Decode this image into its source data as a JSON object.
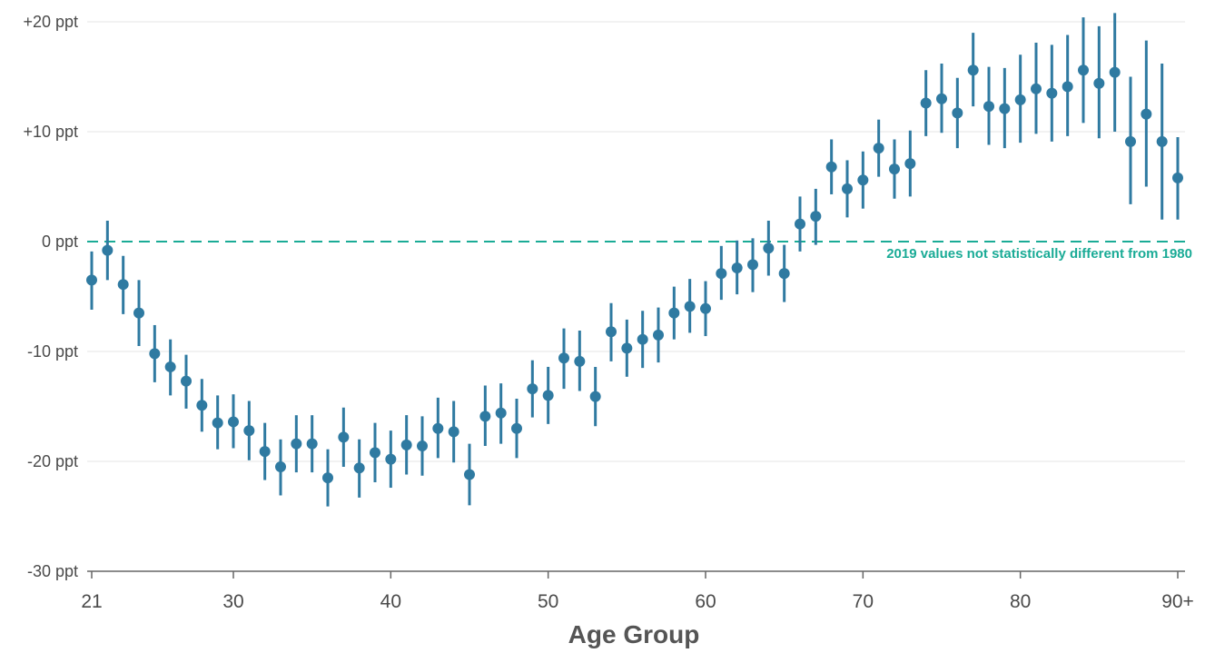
{
  "colors": {
    "series": "#2f7aa1",
    "reference": "#1aab96",
    "grid": "#e6e6e6",
    "axis": "#666666",
    "text": "#4a4a4a"
  },
  "chart_data": {
    "type": "scatter",
    "title": "",
    "xlabel": "Age Group",
    "ylabel": "",
    "xlim": [
      21,
      90
    ],
    "ylim": [
      -30,
      20
    ],
    "yticks": [
      {
        "value": 20,
        "label": "+20 ppt"
      },
      {
        "value": 10,
        "label": "+10 ppt"
      },
      {
        "value": 0,
        "label": "0 ppt"
      },
      {
        "value": -10,
        "label": "-10 ppt"
      },
      {
        "value": -20,
        "label": "-20 ppt"
      },
      {
        "value": -30,
        "label": "-30 ppt"
      }
    ],
    "xticks": [
      {
        "value": 21,
        "label": "21"
      },
      {
        "value": 30,
        "label": "30"
      },
      {
        "value": 40,
        "label": "40"
      },
      {
        "value": 50,
        "label": "50"
      },
      {
        "value": 60,
        "label": "60"
      },
      {
        "value": 70,
        "label": "70"
      },
      {
        "value": 80,
        "label": "80"
      },
      {
        "value": 90,
        "label": "90+"
      }
    ],
    "grid": true,
    "reference_line": {
      "value": 0,
      "style": "dashed"
    },
    "annotation": "2019 values not statistically different from 1980",
    "series": [
      {
        "points": [
          {
            "x": 21,
            "y": -3.5,
            "lo": -6.2,
            "hi": -0.9
          },
          {
            "x": 22,
            "y": -0.8,
            "lo": -3.5,
            "hi": 1.9
          },
          {
            "x": 23,
            "y": -3.9,
            "lo": -6.6,
            "hi": -1.3
          },
          {
            "x": 24,
            "y": -6.5,
            "lo": -9.5,
            "hi": -3.5
          },
          {
            "x": 25,
            "y": -10.2,
            "lo": -12.8,
            "hi": -7.6
          },
          {
            "x": 26,
            "y": -11.4,
            "lo": -14.0,
            "hi": -8.9
          },
          {
            "x": 27,
            "y": -12.7,
            "lo": -15.2,
            "hi": -10.3
          },
          {
            "x": 28,
            "y": -14.9,
            "lo": -17.3,
            "hi": -12.5
          },
          {
            "x": 29,
            "y": -16.5,
            "lo": -18.9,
            "hi": -14.0
          },
          {
            "x": 30,
            "y": -16.4,
            "lo": -18.8,
            "hi": -13.9
          },
          {
            "x": 31,
            "y": -17.2,
            "lo": -19.9,
            "hi": -14.5
          },
          {
            "x": 32,
            "y": -19.1,
            "lo": -21.7,
            "hi": -16.5
          },
          {
            "x": 33,
            "y": -20.5,
            "lo": -23.1,
            "hi": -18.0
          },
          {
            "x": 34,
            "y": -18.4,
            "lo": -21.0,
            "hi": -15.8
          },
          {
            "x": 35,
            "y": -18.4,
            "lo": -21.0,
            "hi": -15.8
          },
          {
            "x": 36,
            "y": -21.5,
            "lo": -24.1,
            "hi": -18.9
          },
          {
            "x": 37,
            "y": -17.8,
            "lo": -20.5,
            "hi": -15.1
          },
          {
            "x": 38,
            "y": -20.6,
            "lo": -23.3,
            "hi": -18.0
          },
          {
            "x": 39,
            "y": -19.2,
            "lo": -21.9,
            "hi": -16.5
          },
          {
            "x": 40,
            "y": -19.8,
            "lo": -22.4,
            "hi": -17.2
          },
          {
            "x": 41,
            "y": -18.5,
            "lo": -21.2,
            "hi": -15.8
          },
          {
            "x": 42,
            "y": -18.6,
            "lo": -21.3,
            "hi": -15.9
          },
          {
            "x": 43,
            "y": -17.0,
            "lo": -19.7,
            "hi": -14.2
          },
          {
            "x": 44,
            "y": -17.3,
            "lo": -20.1,
            "hi": -14.5
          },
          {
            "x": 45,
            "y": -21.2,
            "lo": -24.0,
            "hi": -18.4
          },
          {
            "x": 46,
            "y": -15.9,
            "lo": -18.6,
            "hi": -13.1
          },
          {
            "x": 47,
            "y": -15.6,
            "lo": -18.4,
            "hi": -12.9
          },
          {
            "x": 48,
            "y": -17.0,
            "lo": -19.7,
            "hi": -14.3
          },
          {
            "x": 49,
            "y": -13.4,
            "lo": -16.0,
            "hi": -10.8
          },
          {
            "x": 50,
            "y": -14.0,
            "lo": -16.6,
            "hi": -11.4
          },
          {
            "x": 51,
            "y": -10.6,
            "lo": -13.4,
            "hi": -7.9
          },
          {
            "x": 52,
            "y": -10.9,
            "lo": -13.6,
            "hi": -8.1
          },
          {
            "x": 53,
            "y": -14.1,
            "lo": -16.8,
            "hi": -11.4
          },
          {
            "x": 54,
            "y": -8.2,
            "lo": -10.9,
            "hi": -5.6
          },
          {
            "x": 55,
            "y": -9.7,
            "lo": -12.3,
            "hi": -7.1
          },
          {
            "x": 56,
            "y": -8.9,
            "lo": -11.5,
            "hi": -6.3
          },
          {
            "x": 57,
            "y": -8.5,
            "lo": -11.0,
            "hi": -6.0
          },
          {
            "x": 58,
            "y": -6.5,
            "lo": -8.9,
            "hi": -4.1
          },
          {
            "x": 59,
            "y": -5.9,
            "lo": -8.3,
            "hi": -3.4
          },
          {
            "x": 60,
            "y": -6.1,
            "lo": -8.6,
            "hi": -3.6
          },
          {
            "x": 61,
            "y": -2.9,
            "lo": -5.3,
            "hi": -0.4
          },
          {
            "x": 62,
            "y": -2.4,
            "lo": -4.8,
            "hi": 0.1
          },
          {
            "x": 63,
            "y": -2.1,
            "lo": -4.6,
            "hi": 0.3
          },
          {
            "x": 64,
            "y": -0.6,
            "lo": -3.1,
            "hi": 1.9
          },
          {
            "x": 65,
            "y": -2.9,
            "lo": -5.5,
            "hi": -0.3
          },
          {
            "x": 66,
            "y": 1.6,
            "lo": -0.9,
            "hi": 4.1
          },
          {
            "x": 67,
            "y": 2.3,
            "lo": -0.3,
            "hi": 4.8
          },
          {
            "x": 68,
            "y": 6.8,
            "lo": 4.3,
            "hi": 9.3
          },
          {
            "x": 69,
            "y": 4.8,
            "lo": 2.2,
            "hi": 7.4
          },
          {
            "x": 70,
            "y": 5.6,
            "lo": 3.0,
            "hi": 8.2
          },
          {
            "x": 71,
            "y": 8.5,
            "lo": 5.9,
            "hi": 11.1
          },
          {
            "x": 72,
            "y": 6.6,
            "lo": 3.9,
            "hi": 9.3
          },
          {
            "x": 73,
            "y": 7.1,
            "lo": 4.1,
            "hi": 10.1
          },
          {
            "x": 74,
            "y": 12.6,
            "lo": 9.6,
            "hi": 15.6
          },
          {
            "x": 75,
            "y": 13.0,
            "lo": 9.9,
            "hi": 16.2
          },
          {
            "x": 76,
            "y": 11.7,
            "lo": 8.5,
            "hi": 14.9
          },
          {
            "x": 77,
            "y": 15.6,
            "lo": 12.3,
            "hi": 19.0
          },
          {
            "x": 78,
            "y": 12.3,
            "lo": 8.8,
            "hi": 15.9
          },
          {
            "x": 79,
            "y": 12.1,
            "lo": 8.5,
            "hi": 15.8
          },
          {
            "x": 80,
            "y": 12.9,
            "lo": 9.0,
            "hi": 17.0
          },
          {
            "x": 81,
            "y": 13.9,
            "lo": 9.8,
            "hi": 18.1
          },
          {
            "x": 82,
            "y": 13.5,
            "lo": 9.1,
            "hi": 17.9
          },
          {
            "x": 83,
            "y": 14.1,
            "lo": 9.6,
            "hi": 18.8
          },
          {
            "x": 84,
            "y": 15.6,
            "lo": 10.8,
            "hi": 20.4
          },
          {
            "x": 85,
            "y": 14.4,
            "lo": 9.4,
            "hi": 19.6
          },
          {
            "x": 86,
            "y": 15.4,
            "lo": 10.0,
            "hi": 20.8
          },
          {
            "x": 87,
            "y": 9.1,
            "lo": 3.4,
            "hi": 15.0
          },
          {
            "x": 88,
            "y": 11.6,
            "lo": 5.0,
            "hi": 18.3
          },
          {
            "x": 89,
            "y": 9.1,
            "lo": 2.0,
            "hi": 16.2
          },
          {
            "x": 90,
            "y": 5.8,
            "lo": 2.0,
            "hi": 9.5
          }
        ]
      }
    ]
  }
}
